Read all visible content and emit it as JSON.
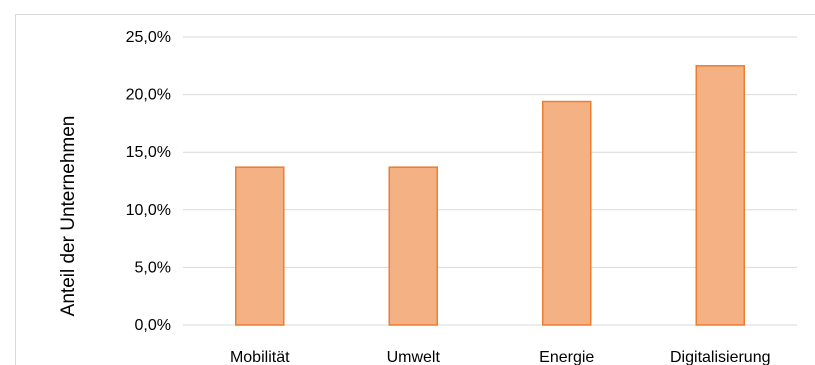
{
  "chart_data": {
    "type": "bar",
    "title": "",
    "xlabel": "",
    "ylabel": "Anteil der Unternehmen",
    "categories": [
      "Mobilität",
      "Umwelt",
      "Energie",
      "Digitalisierung"
    ],
    "values": [
      13.7,
      13.7,
      19.4,
      22.5
    ],
    "ylim": [
      0,
      25
    ],
    "y_ticks": [
      0,
      5,
      10,
      15,
      20,
      25
    ],
    "y_tick_labels": [
      "0,0%",
      "5,0%",
      "10,0%",
      "15,0%",
      "20,0%",
      "25,0%"
    ],
    "grid": true,
    "legend": "none",
    "colors": {
      "bar_fill": "#f4b183",
      "bar_stroke": "#ed7d31",
      "grid": "#d9d9d9"
    }
  }
}
